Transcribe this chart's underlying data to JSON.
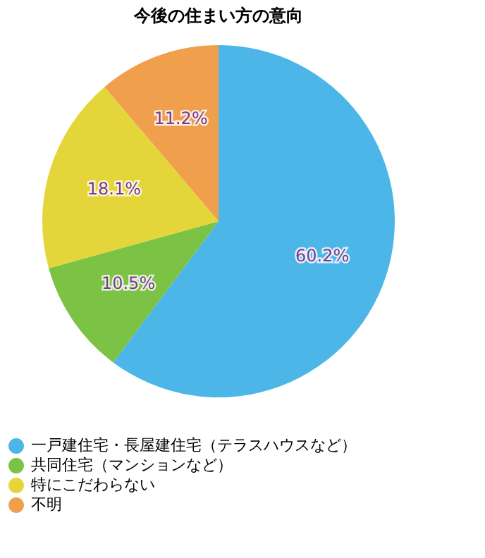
{
  "chart_data": {
    "type": "pie",
    "title": "今後の住まい方の意向",
    "categories": [
      "一戸建住宅・長屋建住宅（テラスハウスなど）",
      "共同住宅（マンションなど）",
      "特にこだわらない",
      "不明"
    ],
    "values": [
      60.2,
      10.5,
      18.1,
      11.2
    ],
    "value_labels": [
      "60.2%",
      "10.5%",
      "18.1%",
      "11.2%"
    ],
    "colors": [
      "#4cb6e8",
      "#7cc244",
      "#e4d63a",
      "#f0a04c"
    ],
    "legend": "bottom"
  }
}
